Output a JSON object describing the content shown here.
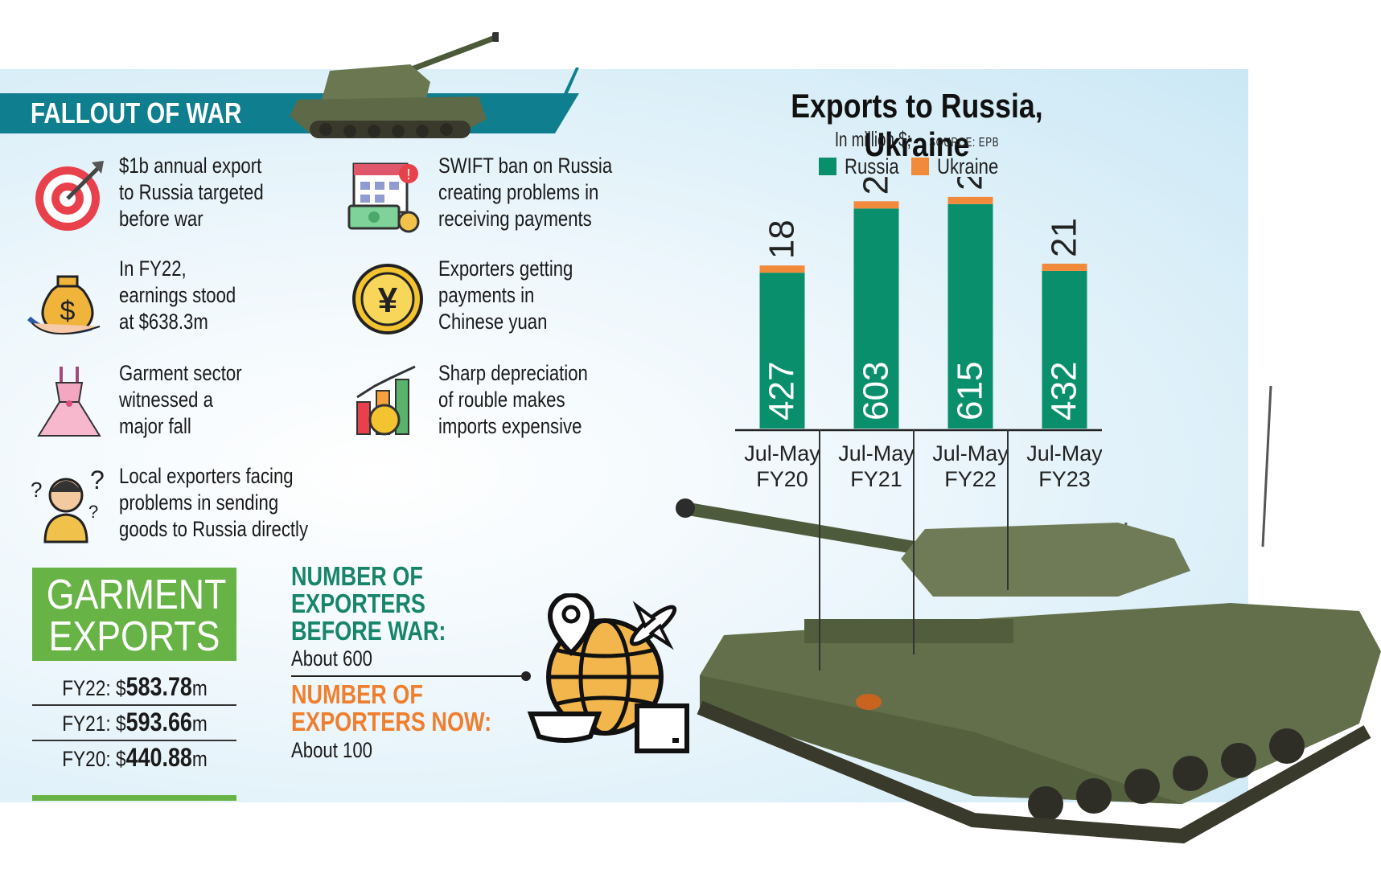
{
  "header": {
    "title": "FALLOUT OF WAR"
  },
  "items_left": [
    {
      "icon": "target-icon",
      "lines": [
        "$1b annual export",
        "to Russia targeted",
        "before war"
      ]
    },
    {
      "icon": "money-bag-icon",
      "lines": [
        "In FY22,",
        "earnings stood",
        "at $638.3m"
      ]
    },
    {
      "icon": "dress-icon",
      "lines": [
        "Garment sector",
        "witnessed a",
        "major fall"
      ]
    },
    {
      "icon": "confused-person-icon",
      "lines": [
        "Local exporters facing",
        "problems in sending",
        "goods to Russia directly"
      ]
    }
  ],
  "items_right": [
    {
      "icon": "payment-calendar-icon",
      "lines": [
        "SWIFT ban on Russia",
        "creating problems in",
        "receiving payments"
      ]
    },
    {
      "icon": "yuan-coin-icon",
      "lines": [
        "Exporters getting",
        "payments in",
        "Chinese yuan"
      ]
    },
    {
      "icon": "growth-chart-icon",
      "lines": [
        "Sharp depreciation",
        "of rouble makes",
        "imports expensive"
      ]
    }
  ],
  "garment": {
    "title_line1": "GARMENT",
    "title_line2": "EXPORTS",
    "rows": [
      {
        "label": "FY22: $",
        "value": "583.78",
        "unit": "m"
      },
      {
        "label": "FY21: $",
        "value": "593.66",
        "unit": "m"
      },
      {
        "label": "FY20: $",
        "value": "440.88",
        "unit": "m"
      }
    ]
  },
  "exporters": {
    "before_line1": "NUMBER OF",
    "before_line2": "EXPORTERS",
    "before_line3": "BEFORE WAR:",
    "before_value": "About 600",
    "now_line1": "NUMBER OF",
    "now_line2": "EXPORTERS NOW:",
    "now_value": "About 100"
  },
  "colors": {
    "teal_banner": "#0f7e8f",
    "russia": "#0a8f6c",
    "ukraine": "#f28a3c",
    "garment_green": "#67b346",
    "exporters_before": "#17856b",
    "exporters_now": "#ef7f2e"
  },
  "chart_data": {
    "type": "bar",
    "stacked": true,
    "title": "Exports to Russia, Ukraine",
    "subtitle_main": "In million $;",
    "subtitle_source": "SOURCE: EPB",
    "categories": [
      [
        "Jul-May",
        "FY20"
      ],
      [
        "Jul-May",
        "FY21"
      ],
      [
        "Jul-May",
        "FY22"
      ],
      [
        "Jul-May",
        "FY23"
      ]
    ],
    "series": [
      {
        "name": "Russia",
        "values": [
          427,
          603,
          615,
          432
        ],
        "color": "#0a8f6c"
      },
      {
        "name": "Ukraine",
        "values": [
          18,
          25,
          20,
          21
        ],
        "color": "#f28a3c"
      }
    ],
    "ylim": [
      0,
      650
    ],
    "legend": "top",
    "grid": false
  },
  "decor": {
    "tank_top": "tank-illustration",
    "tank_bottom": "tank-illustration",
    "globe": "globe-logistics-icon"
  }
}
